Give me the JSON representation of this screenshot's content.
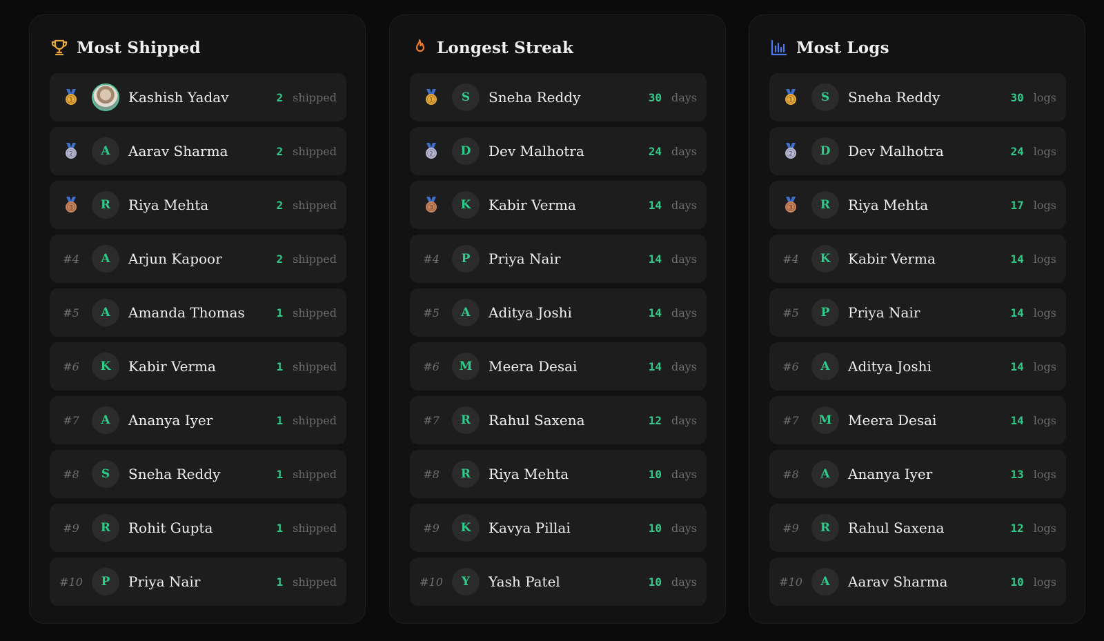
{
  "colors": {
    "background": "#0b0b0b",
    "panel": "#121212",
    "row": "#1d1d1d",
    "accent_green": "#33c98a",
    "gold": "#e7a93a",
    "silver": "#b9b9d6",
    "bronze": "#c9835a",
    "streak_orange": "#f07a2c",
    "logs_blue": "#4c7bf0"
  },
  "boards": [
    {
      "title": "Most Shipped",
      "icon": "trophy-icon",
      "unit": "shipped",
      "entries": [
        {
          "rank": "1",
          "medal": "gold",
          "initial": "",
          "avatar": "photo",
          "name": "Kashish Yadav",
          "value": "2"
        },
        {
          "rank": "2",
          "medal": "silver",
          "initial": "A",
          "name": "Aarav Sharma",
          "value": "2"
        },
        {
          "rank": "3",
          "medal": "bronze",
          "initial": "R",
          "name": "Riya Mehta",
          "value": "2"
        },
        {
          "rank": "#4",
          "initial": "A",
          "name": "Arjun Kapoor",
          "value": "2"
        },
        {
          "rank": "#5",
          "initial": "A",
          "name": "Amanda Thomas",
          "value": "1"
        },
        {
          "rank": "#6",
          "initial": "K",
          "name": "Kabir Verma",
          "value": "1"
        },
        {
          "rank": "#7",
          "initial": "A",
          "name": "Ananya Iyer",
          "value": "1"
        },
        {
          "rank": "#8",
          "initial": "S",
          "name": "Sneha Reddy",
          "value": "1"
        },
        {
          "rank": "#9",
          "initial": "R",
          "name": "Rohit Gupta",
          "value": "1"
        },
        {
          "rank": "#10",
          "initial": "P",
          "name": "Priya Nair",
          "value": "1"
        }
      ]
    },
    {
      "title": "Longest Streak",
      "icon": "flame-icon",
      "unit": "days",
      "entries": [
        {
          "rank": "1",
          "medal": "gold",
          "initial": "S",
          "name": "Sneha Reddy",
          "value": "30"
        },
        {
          "rank": "2",
          "medal": "silver",
          "initial": "D",
          "name": "Dev Malhotra",
          "value": "24"
        },
        {
          "rank": "3",
          "medal": "bronze",
          "initial": "K",
          "name": "Kabir Verma",
          "value": "14"
        },
        {
          "rank": "#4",
          "initial": "P",
          "name": "Priya Nair",
          "value": "14"
        },
        {
          "rank": "#5",
          "initial": "A",
          "name": "Aditya Joshi",
          "value": "14"
        },
        {
          "rank": "#6",
          "initial": "M",
          "name": "Meera Desai",
          "value": "14"
        },
        {
          "rank": "#7",
          "initial": "R",
          "name": "Rahul Saxena",
          "value": "12"
        },
        {
          "rank": "#8",
          "initial": "R",
          "name": "Riya Mehta",
          "value": "10"
        },
        {
          "rank": "#9",
          "initial": "K",
          "name": "Kavya Pillai",
          "value": "10"
        },
        {
          "rank": "#10",
          "initial": "Y",
          "name": "Yash Patel",
          "value": "10"
        }
      ]
    },
    {
      "title": "Most Logs",
      "icon": "bar-chart-icon",
      "unit": "logs",
      "entries": [
        {
          "rank": "1",
          "medal": "gold",
          "initial": "S",
          "name": "Sneha Reddy",
          "value": "30"
        },
        {
          "rank": "2",
          "medal": "silver",
          "initial": "D",
          "name": "Dev Malhotra",
          "value": "24"
        },
        {
          "rank": "3",
          "medal": "bronze",
          "initial": "R",
          "name": "Riya Mehta",
          "value": "17"
        },
        {
          "rank": "#4",
          "initial": "K",
          "name": "Kabir Verma",
          "value": "14"
        },
        {
          "rank": "#5",
          "initial": "P",
          "name": "Priya Nair",
          "value": "14"
        },
        {
          "rank": "#6",
          "initial": "A",
          "name": "Aditya Joshi",
          "value": "14"
        },
        {
          "rank": "#7",
          "initial": "M",
          "name": "Meera Desai",
          "value": "14"
        },
        {
          "rank": "#8",
          "initial": "A",
          "name": "Ananya Iyer",
          "value": "13"
        },
        {
          "rank": "#9",
          "initial": "R",
          "name": "Rahul Saxena",
          "value": "12"
        },
        {
          "rank": "#10",
          "initial": "A",
          "name": "Aarav Sharma",
          "value": "10"
        }
      ]
    }
  ]
}
